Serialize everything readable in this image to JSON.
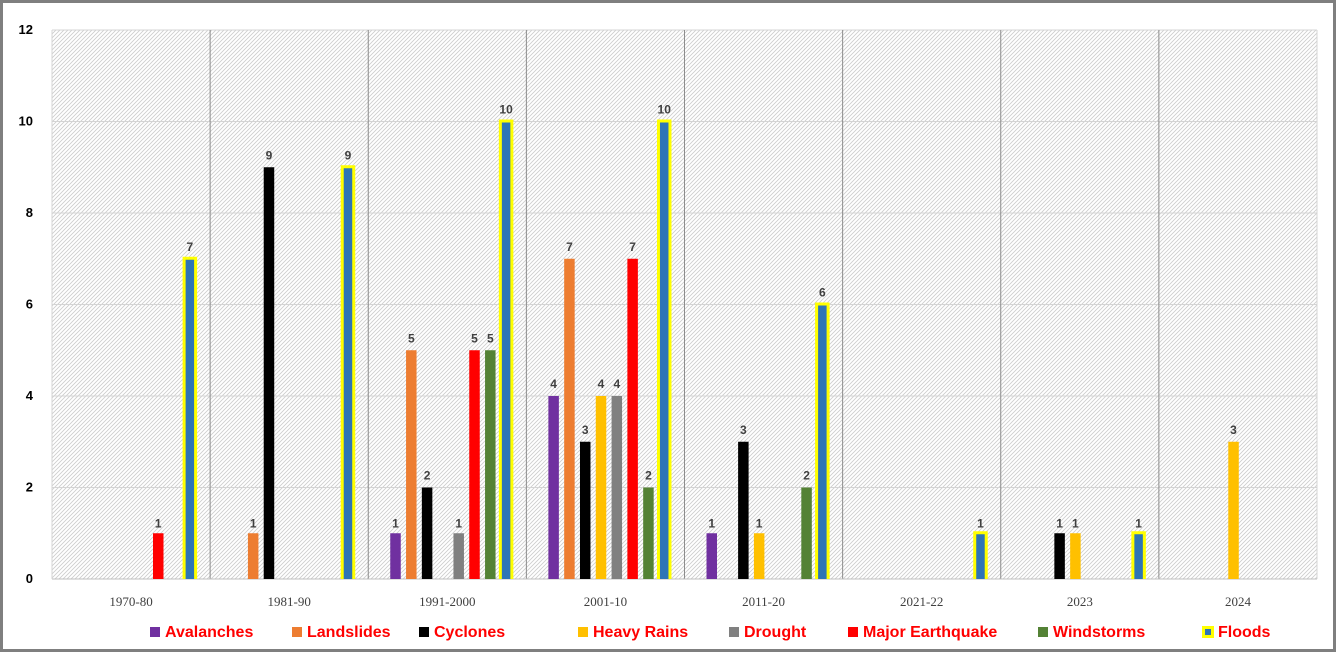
{
  "chart_data": {
    "type": "bar",
    "title": "",
    "xlabel": "",
    "ylabel": "",
    "ylim": [
      0,
      12
    ],
    "yticks": [
      0,
      2,
      4,
      6,
      8,
      10,
      12
    ],
    "grid": true,
    "legend_position": "bottom",
    "categories": [
      "1970-80",
      "1981-90",
      "1991-2000",
      "2001-10",
      "2011-20",
      "2021-22",
      "2023",
      "2024"
    ],
    "series": [
      {
        "name": "Avalanches",
        "color": "#7030a0",
        "values": [
          null,
          null,
          1,
          4,
          1,
          null,
          null,
          null
        ]
      },
      {
        "name": "Landslides",
        "color": "#ed7d31",
        "values": [
          null,
          1,
          5,
          7,
          null,
          null,
          null,
          null
        ]
      },
      {
        "name": "Cyclones",
        "color": "#000000",
        "values": [
          null,
          9,
          2,
          3,
          3,
          null,
          1,
          null
        ]
      },
      {
        "name": "Heavy Rains",
        "color": "#ffc000",
        "values": [
          null,
          null,
          null,
          4,
          1,
          null,
          1,
          3
        ]
      },
      {
        "name": "Drought",
        "color": "#808080",
        "values": [
          null,
          null,
          1,
          4,
          null,
          null,
          null,
          null
        ]
      },
      {
        "name": "Major Earthquake",
        "color": "#ff0000",
        "values": [
          1,
          null,
          5,
          7,
          null,
          null,
          null,
          null
        ]
      },
      {
        "name": "Windstorms",
        "color": "#548235",
        "values": [
          null,
          null,
          5,
          2,
          2,
          null,
          null,
          null
        ]
      },
      {
        "name": "Floods",
        "color": "#2e75b6",
        "border_color": "#ffff00",
        "values": [
          7,
          9,
          10,
          10,
          6,
          1,
          1,
          null
        ]
      }
    ]
  }
}
